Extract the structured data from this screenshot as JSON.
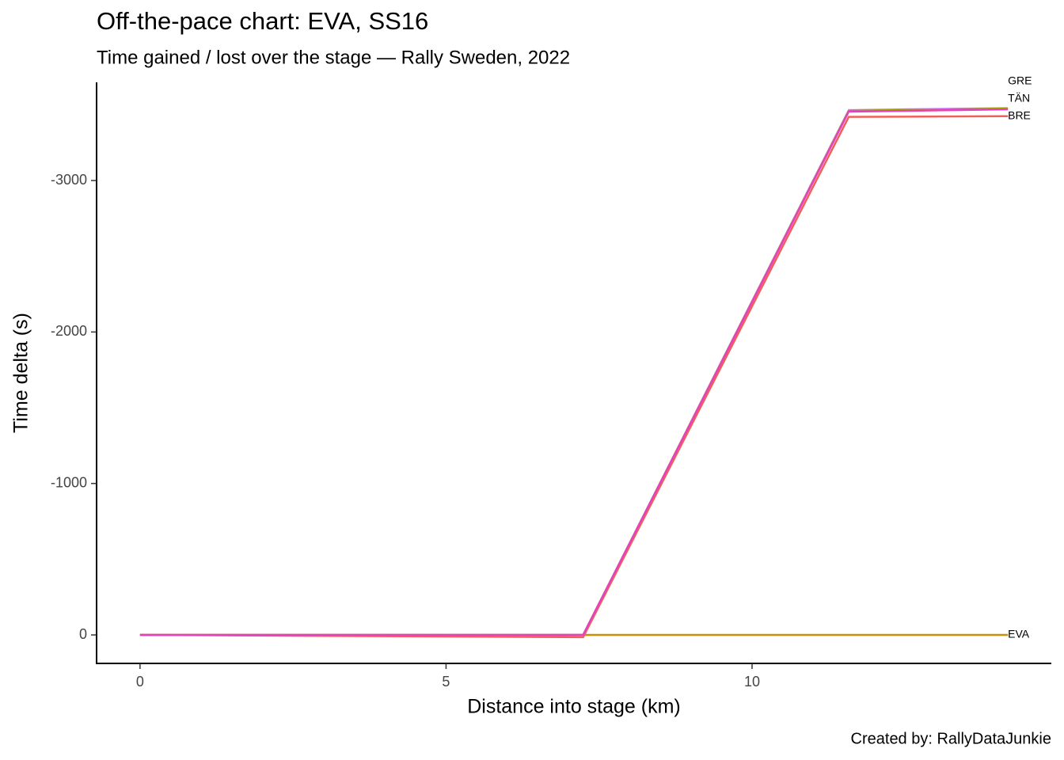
{
  "chart_data": {
    "type": "line",
    "title": "Off-the-pace chart: EVA, SS16",
    "subtitle": "Time gained / lost over the stage — Rally Sweden, 2022",
    "x_label": "Distance into stage (km)",
    "y_label": "Time delta (s)",
    "caption": "Created by: RallyDataJunkie",
    "x": [
      0,
      7.24,
      11.58,
      14.18
    ],
    "series": [
      {
        "name": "EVA",
        "color": "#c8900a",
        "values": [
          0,
          0,
          0,
          0
        ]
      },
      {
        "name": "BRE",
        "color": "#f0605a",
        "values": [
          0,
          15,
          -3420,
          -3425
        ]
      },
      {
        "color": "#c77cff",
        "values": [
          0,
          0,
          -3465,
          -3478
        ]
      },
      {
        "name": "GRE",
        "color": "#a3a500",
        "values": [
          0,
          0,
          -3460,
          -3475
        ]
      },
      {
        "name": "TÄN",
        "color": "#e83fbf",
        "values": [
          0,
          0,
          -3455,
          -3470
        ]
      }
    ],
    "xlim": [
      -0.71,
      14.89
    ],
    "ylim": [
      188,
      -3643
    ],
    "xticks": [
      0,
      5,
      10
    ],
    "yticks": [
      0,
      -1000,
      -2000,
      -3000
    ]
  }
}
